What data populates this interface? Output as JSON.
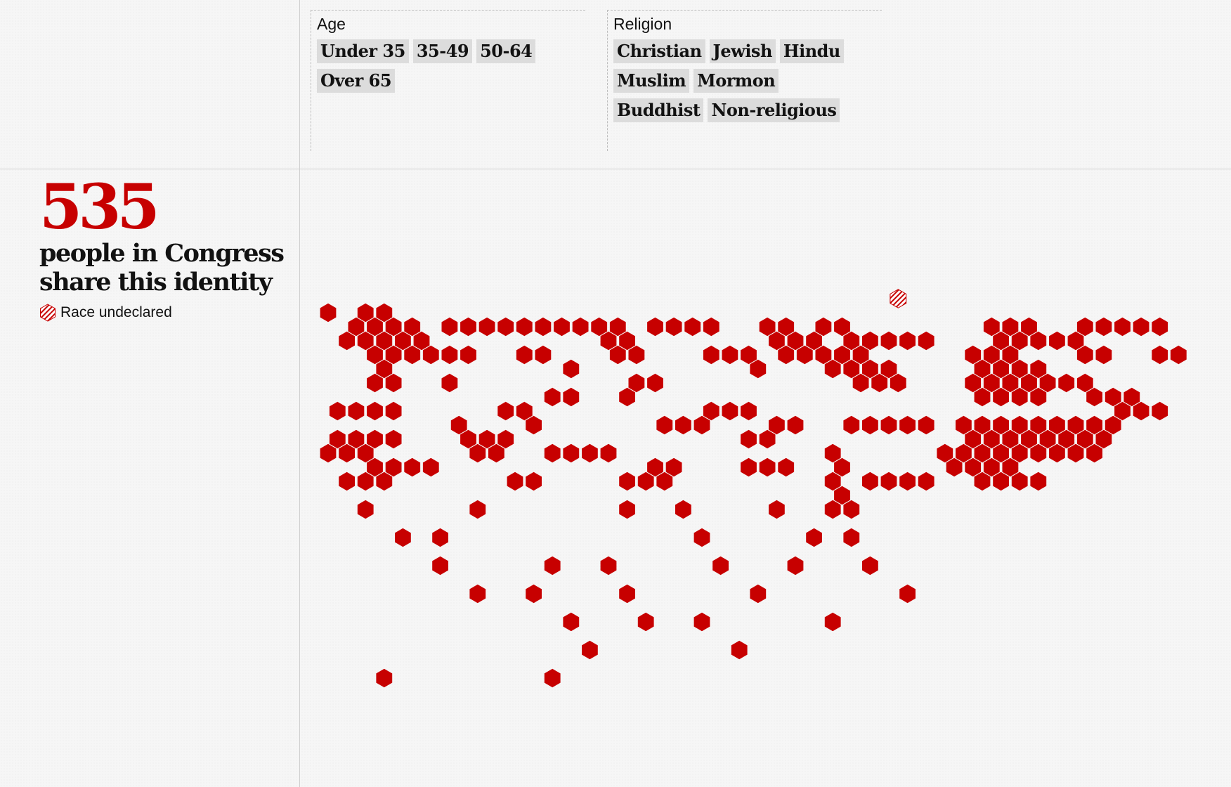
{
  "filters": {
    "age": {
      "title": "Age",
      "options": [
        "Under 35",
        "35-49",
        "50-64",
        "Over 65"
      ]
    },
    "religion": {
      "title": "Religion",
      "options": [
        "Christian",
        "Jewish",
        "Hindu",
        "Muslim",
        "Mormon",
        "Buddhist",
        "Non-religious"
      ]
    }
  },
  "summary": {
    "count": "535",
    "description": "people in Congress share this identity"
  },
  "legend": {
    "race_undeclared_label": "Race undeclared"
  },
  "map": {
    "hex_fill_color": "#c70000",
    "hatch_color": "#c70000"
  }
}
